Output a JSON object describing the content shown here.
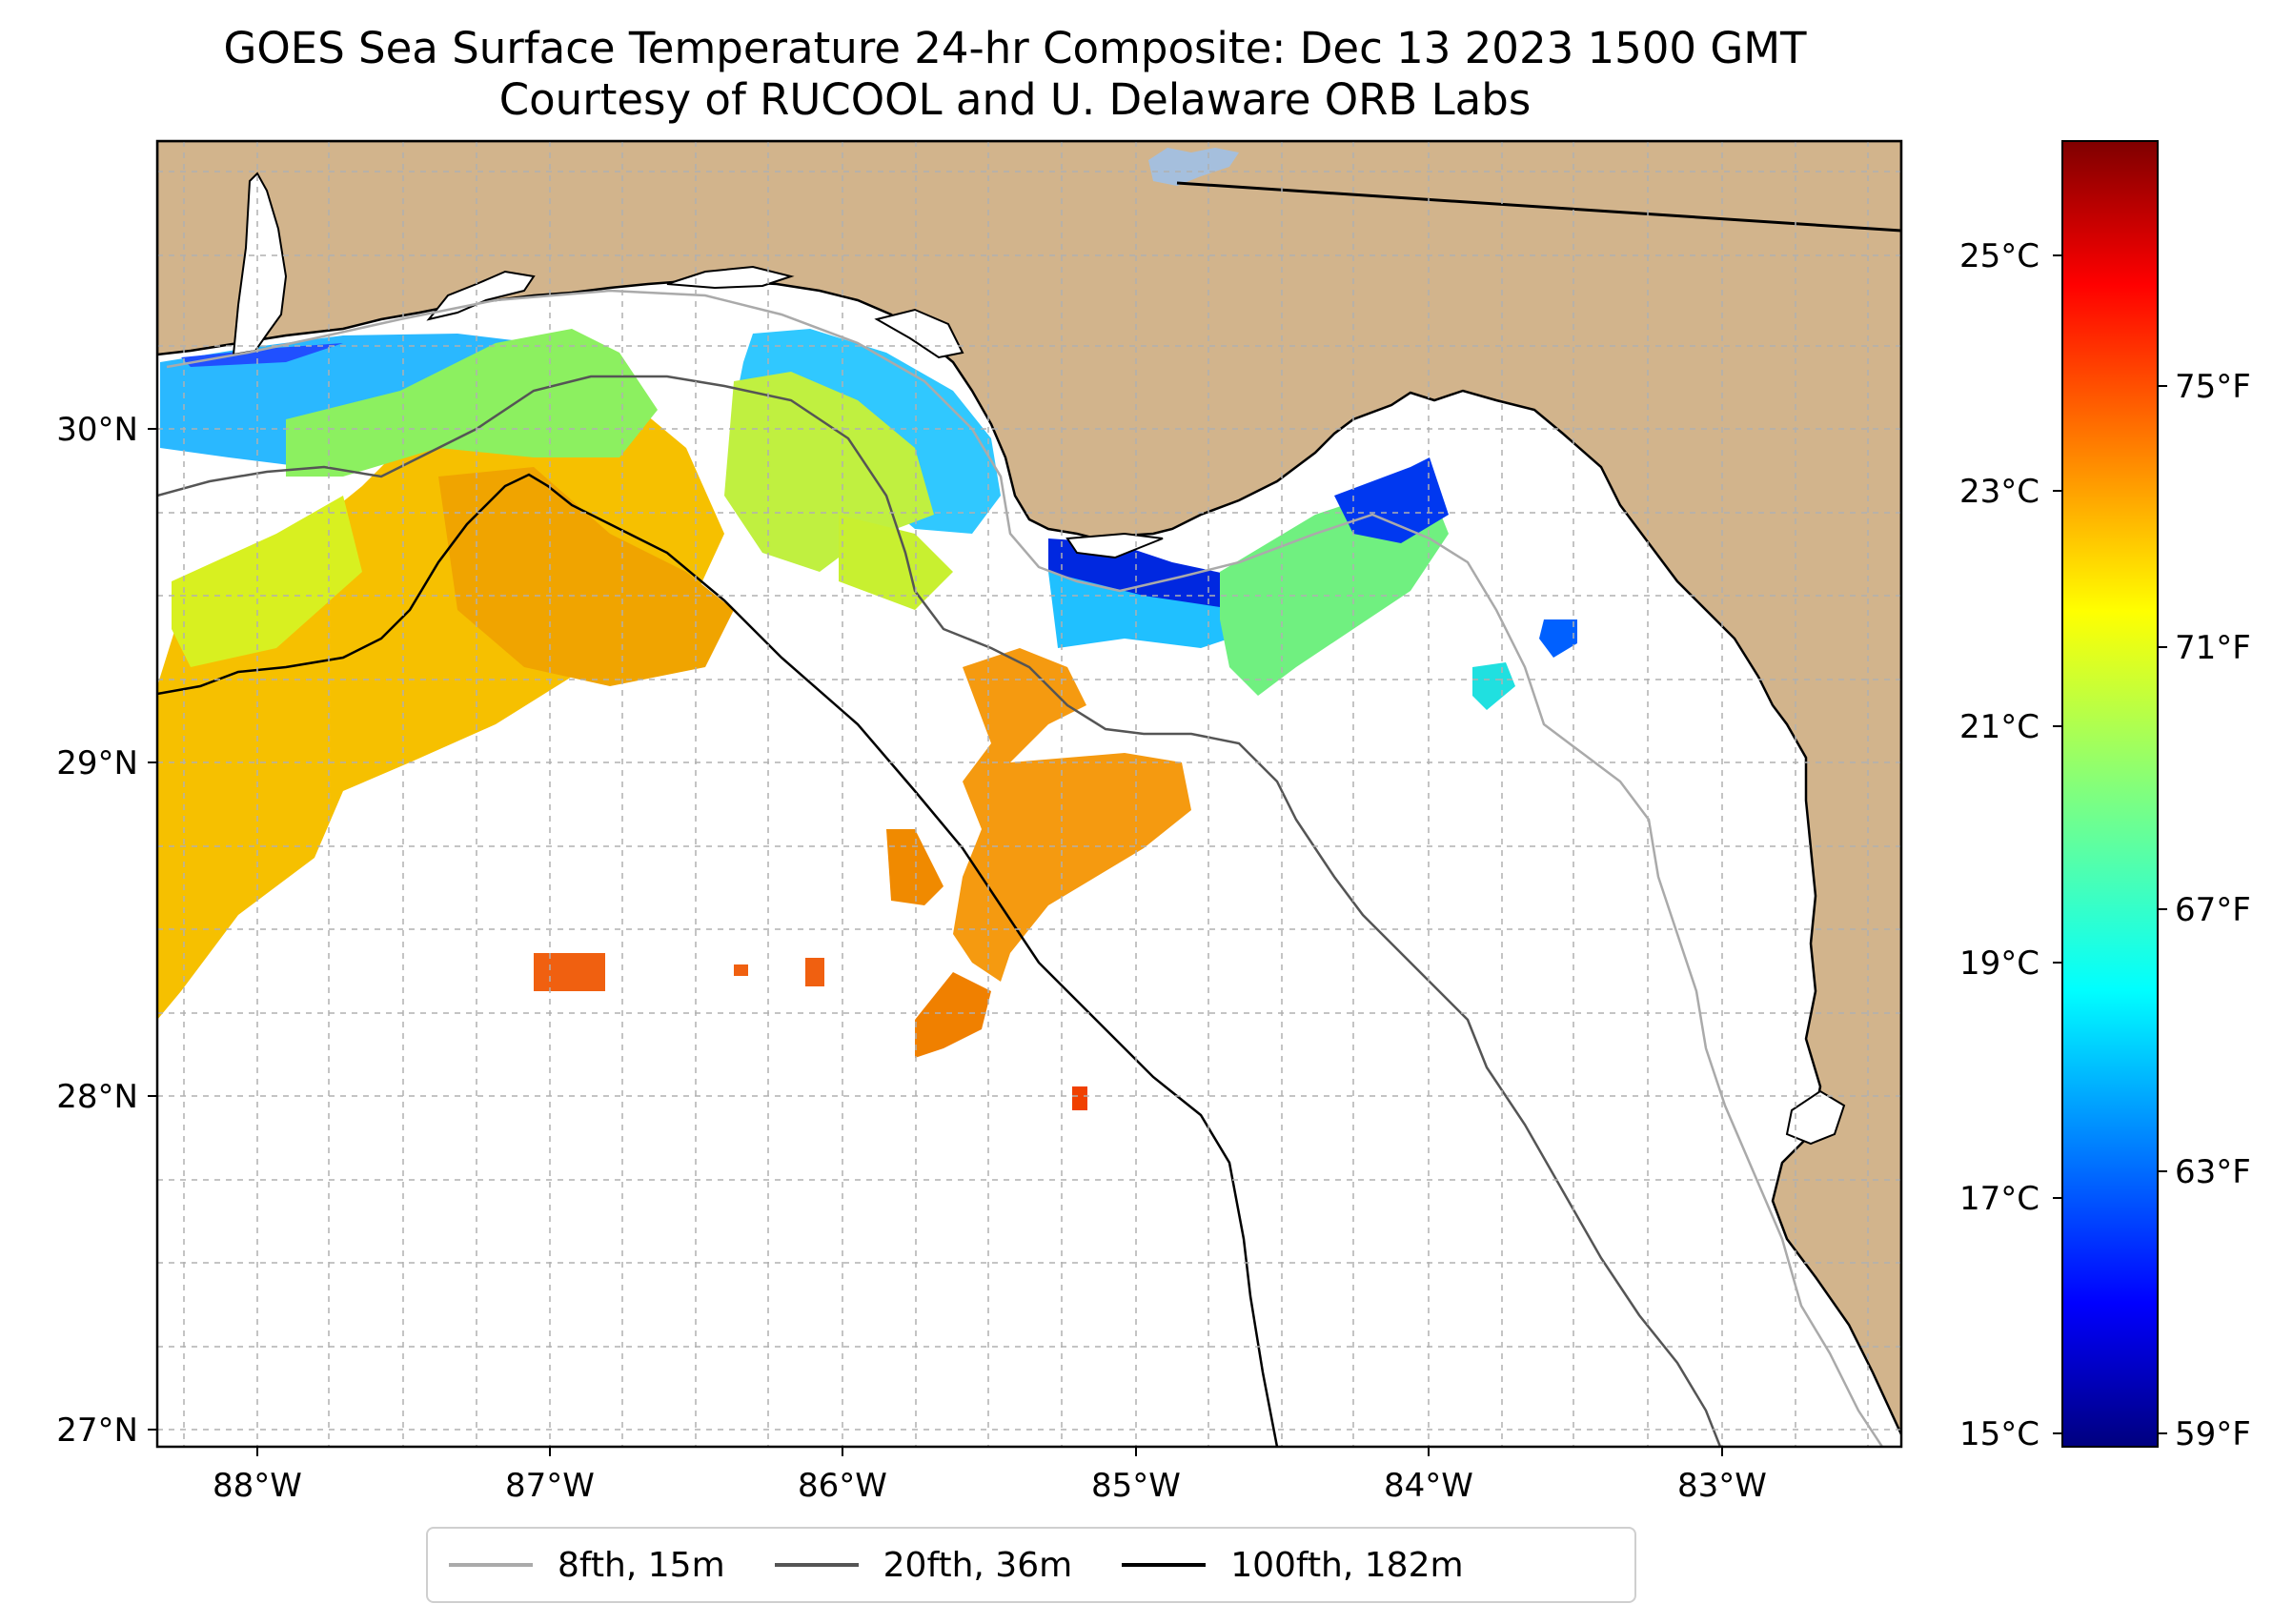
{
  "title": {
    "line1": "GOES Sea Surface Temperature 24-hr Composite: Dec 13 2023 1500 GMT",
    "line2": "Courtesy of RUCOOL and U. Delaware ORB Labs"
  },
  "map": {
    "land_color": "#d2b48c",
    "ocean_color": "#ffffff",
    "lat_labels": [
      "30°N",
      "29°N",
      "28°N",
      "27°N"
    ],
    "lon_labels": [
      "88°W",
      "87°W",
      "86°W",
      "85°W",
      "84°W",
      "83°W"
    ]
  },
  "colorbar": {
    "colormap": "jet",
    "celsius_labels": [
      "25°C",
      "23°C",
      "21°C",
      "19°C",
      "17°C",
      "15°C"
    ],
    "fahrenheit_labels": [
      "75°F",
      "71°F",
      "67°F",
      "63°F",
      "59°F"
    ],
    "range_c": [
      15,
      26
    ]
  },
  "legend": {
    "entries": [
      {
        "label": "8fth, 15m",
        "color": "#aaaaaa"
      },
      {
        "label": "20fth, 36m",
        "color": "#555555"
      },
      {
        "label": "100fth, 182m",
        "color": "#000000"
      }
    ]
  }
}
